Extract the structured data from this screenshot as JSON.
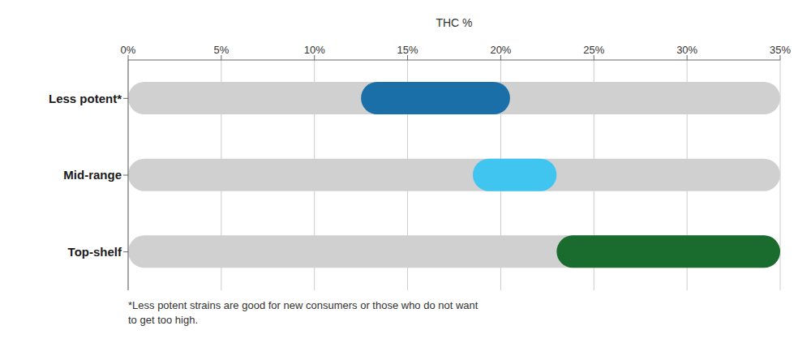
{
  "chart_data": {
    "type": "bar",
    "orientation": "horizontal",
    "xlabel": "THC %",
    "categories": [
      "Less potent*",
      "Mid-range",
      "Top-shelf"
    ],
    "values": [
      [
        12.5,
        20.5
      ],
      [
        18.5,
        23.0
      ],
      [
        23.0,
        35
      ]
    ],
    "colors": [
      "#1a6fa8",
      "#40c4f0",
      "#1a6b2e"
    ],
    "xlim": [
      0,
      35
    ],
    "xticks": [
      {
        "value": 0,
        "label": "0%"
      },
      {
        "value": 5,
        "label": "5%"
      },
      {
        "value": 10,
        "label": "10%"
      },
      {
        "value": 15,
        "label": "15%"
      },
      {
        "value": 20,
        "label": "20%"
      },
      {
        "value": 25,
        "label": "25%"
      },
      {
        "value": 30,
        "label": "30%"
      },
      {
        "value": 35,
        "label": "35%"
      }
    ],
    "grid": true,
    "annotation": "*Less potent strains are good for new consumers or those who do not want\nto get too high."
  }
}
